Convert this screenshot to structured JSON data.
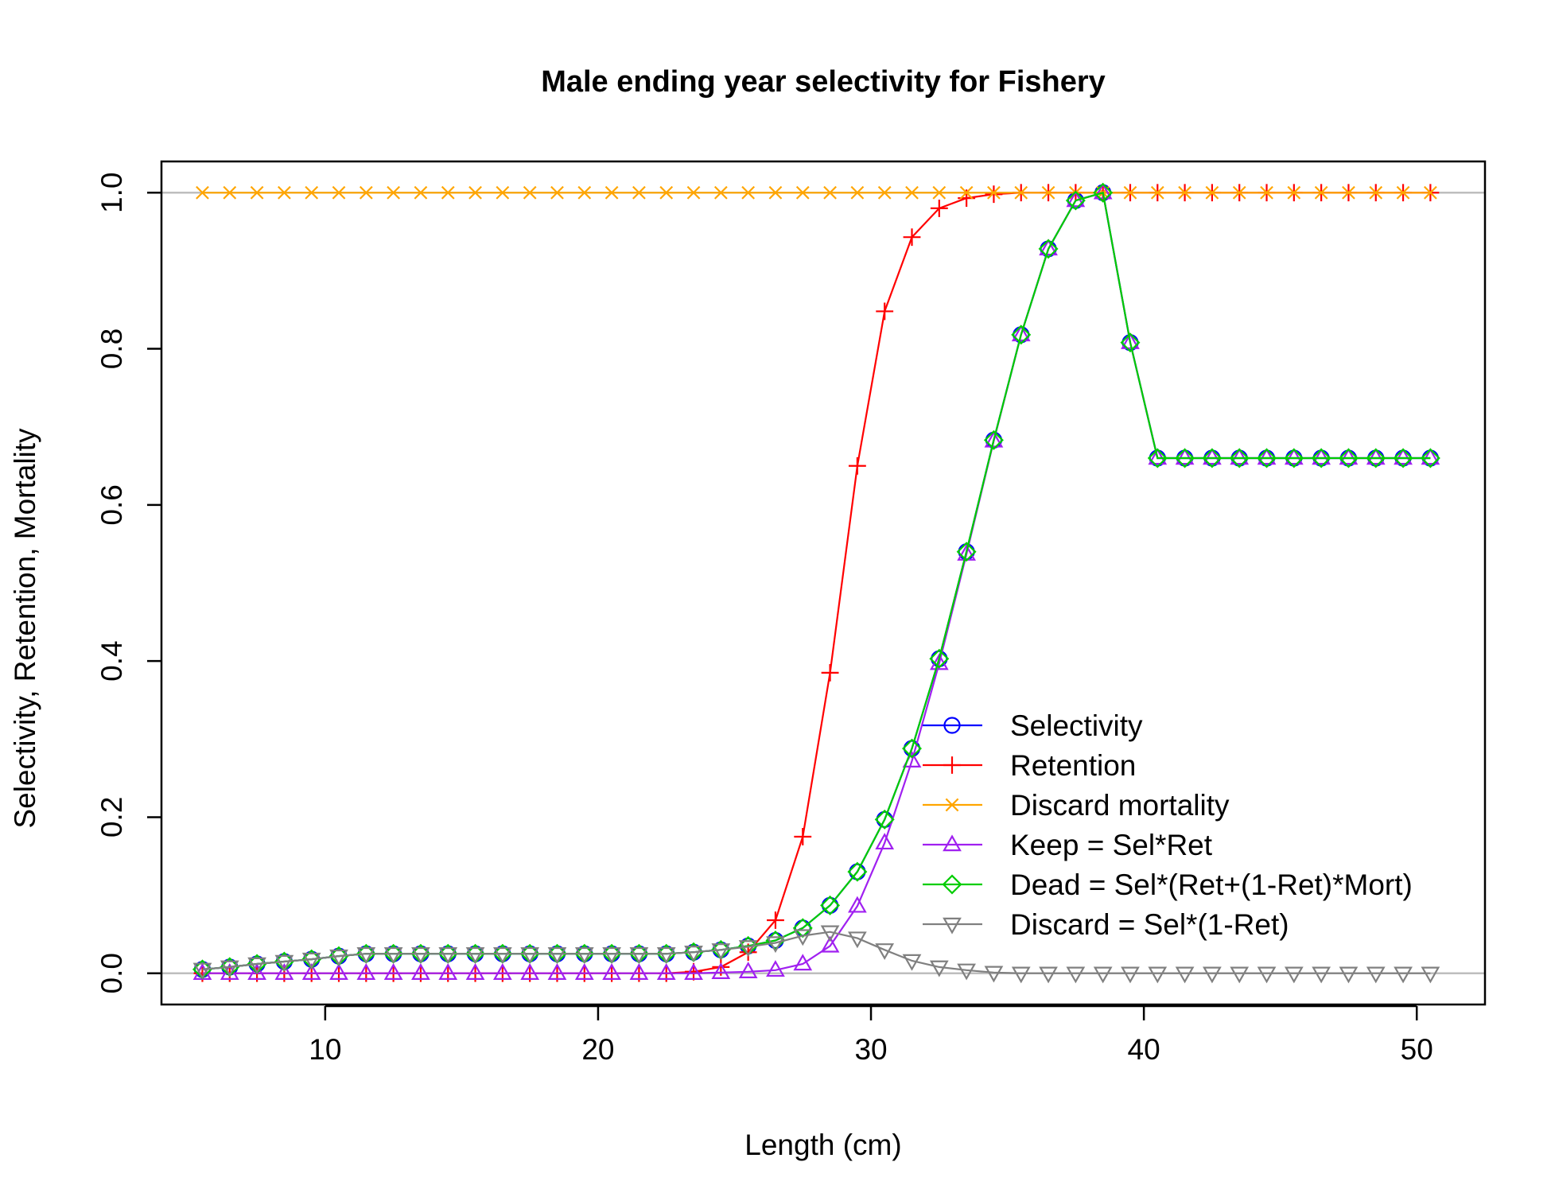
{
  "chart_data": {
    "type": "line",
    "title": "Male ending year selectivity for Fishery",
    "xlabel": "Length (cm)",
    "ylabel": "Selectivity, Retention, Mortality",
    "xlim": [
      4,
      52.5
    ],
    "ylim": [
      -0.04,
      1.04
    ],
    "xticks": [
      10,
      20,
      30,
      40,
      50
    ],
    "yticks": [
      0.0,
      0.2,
      0.4,
      0.6,
      0.8,
      1.0
    ],
    "ytick_labels": [
      "0.0",
      "0.2",
      "0.4",
      "0.6",
      "0.8",
      "1.0"
    ],
    "reference_lines_y": [
      0,
      1
    ],
    "legend_position": "bottom-right",
    "x": [
      5.5,
      6.5,
      7.5,
      8.5,
      9.5,
      10.5,
      11.5,
      12.5,
      13.5,
      14.5,
      15.5,
      16.5,
      17.5,
      18.5,
      19.5,
      20.5,
      21.5,
      22.5,
      23.5,
      24.5,
      25.5,
      26.5,
      27.5,
      28.5,
      29.5,
      30.5,
      31.5,
      32.5,
      33.5,
      34.5,
      35.5,
      36.5,
      37.5,
      38.5,
      39.5,
      40.5,
      41.5,
      42.5,
      43.5,
      44.5,
      45.5,
      46.5,
      47.5,
      48.5,
      49.5,
      50.5
    ],
    "series": [
      {
        "name": "Selectivity",
        "color": "#0000ff",
        "marker": "circle",
        "values": [
          0.005,
          0.008,
          0.012,
          0.015,
          0.018,
          0.022,
          0.025,
          0.025,
          0.025,
          0.025,
          0.025,
          0.025,
          0.025,
          0.025,
          0.025,
          0.025,
          0.025,
          0.025,
          0.027,
          0.03,
          0.035,
          0.042,
          0.058,
          0.087,
          0.13,
          0.197,
          0.288,
          0.403,
          0.54,
          0.683,
          0.818,
          0.928,
          0.99,
          1.0,
          0.808,
          0.66,
          0.66,
          0.66,
          0.66,
          0.66,
          0.66,
          0.66,
          0.66,
          0.66,
          0.66,
          0.66
        ]
      },
      {
        "name": "Retention",
        "color": "#ff0000",
        "marker": "plus",
        "values": [
          0,
          0,
          0,
          0,
          0,
          0,
          0,
          0,
          0,
          0,
          0,
          0,
          0,
          0,
          0,
          0,
          0,
          0,
          0.002,
          0.008,
          0.027,
          0.068,
          0.175,
          0.385,
          0.65,
          0.848,
          0.943,
          0.98,
          0.993,
          0.998,
          1.0,
          1.0,
          1.0,
          1.0,
          1.0,
          1.0,
          1.0,
          1.0,
          1.0,
          1.0,
          1.0,
          1.0,
          1.0,
          1.0,
          1.0,
          1.0
        ]
      },
      {
        "name": "Discard mortality",
        "color": "#ffa500",
        "marker": "cross",
        "values": [
          1,
          1,
          1,
          1,
          1,
          1,
          1,
          1,
          1,
          1,
          1,
          1,
          1,
          1,
          1,
          1,
          1,
          1,
          1,
          1,
          1,
          1,
          1,
          1,
          1,
          1,
          1,
          1,
          1,
          1,
          1,
          1,
          1,
          1,
          1,
          1,
          1,
          1,
          1,
          1,
          1,
          1,
          1,
          1,
          1,
          1
        ]
      },
      {
        "name": "Keep = Sel*Ret",
        "color": "#a020f0",
        "marker": "triangle-up",
        "values": [
          0,
          0,
          0,
          0,
          0,
          0,
          0,
          0,
          0,
          0,
          0,
          0,
          0,
          0,
          0,
          0,
          0,
          0,
          0,
          0.001,
          0.002,
          0.004,
          0.012,
          0.035,
          0.086,
          0.167,
          0.272,
          0.397,
          0.537,
          0.682,
          0.818,
          0.928,
          0.99,
          1.0,
          0.808,
          0.66,
          0.66,
          0.66,
          0.66,
          0.66,
          0.66,
          0.66,
          0.66,
          0.66,
          0.66,
          0.66
        ]
      },
      {
        "name": "Dead = Sel*(Ret+(1-Ret)*Mort)",
        "color": "#00cd00",
        "marker": "diamond",
        "values": [
          0.005,
          0.008,
          0.012,
          0.015,
          0.018,
          0.022,
          0.025,
          0.025,
          0.025,
          0.025,
          0.025,
          0.025,
          0.025,
          0.025,
          0.025,
          0.025,
          0.025,
          0.025,
          0.027,
          0.03,
          0.035,
          0.042,
          0.058,
          0.087,
          0.13,
          0.197,
          0.288,
          0.403,
          0.54,
          0.683,
          0.818,
          0.928,
          0.99,
          1.0,
          0.808,
          0.66,
          0.66,
          0.66,
          0.66,
          0.66,
          0.66,
          0.66,
          0.66,
          0.66,
          0.66,
          0.66
        ]
      },
      {
        "name": "Discard = Sel*(1-Ret)",
        "color": "#808080",
        "marker": "triangle-down",
        "values": [
          0.005,
          0.008,
          0.012,
          0.015,
          0.018,
          0.022,
          0.025,
          0.025,
          0.025,
          0.025,
          0.025,
          0.025,
          0.025,
          0.025,
          0.025,
          0.025,
          0.025,
          0.025,
          0.027,
          0.03,
          0.034,
          0.039,
          0.048,
          0.053,
          0.045,
          0.03,
          0.016,
          0.008,
          0.004,
          0.001,
          0,
          0,
          0,
          0,
          0,
          0,
          0,
          0,
          0,
          0,
          0,
          0,
          0,
          0,
          0,
          0
        ]
      }
    ]
  }
}
